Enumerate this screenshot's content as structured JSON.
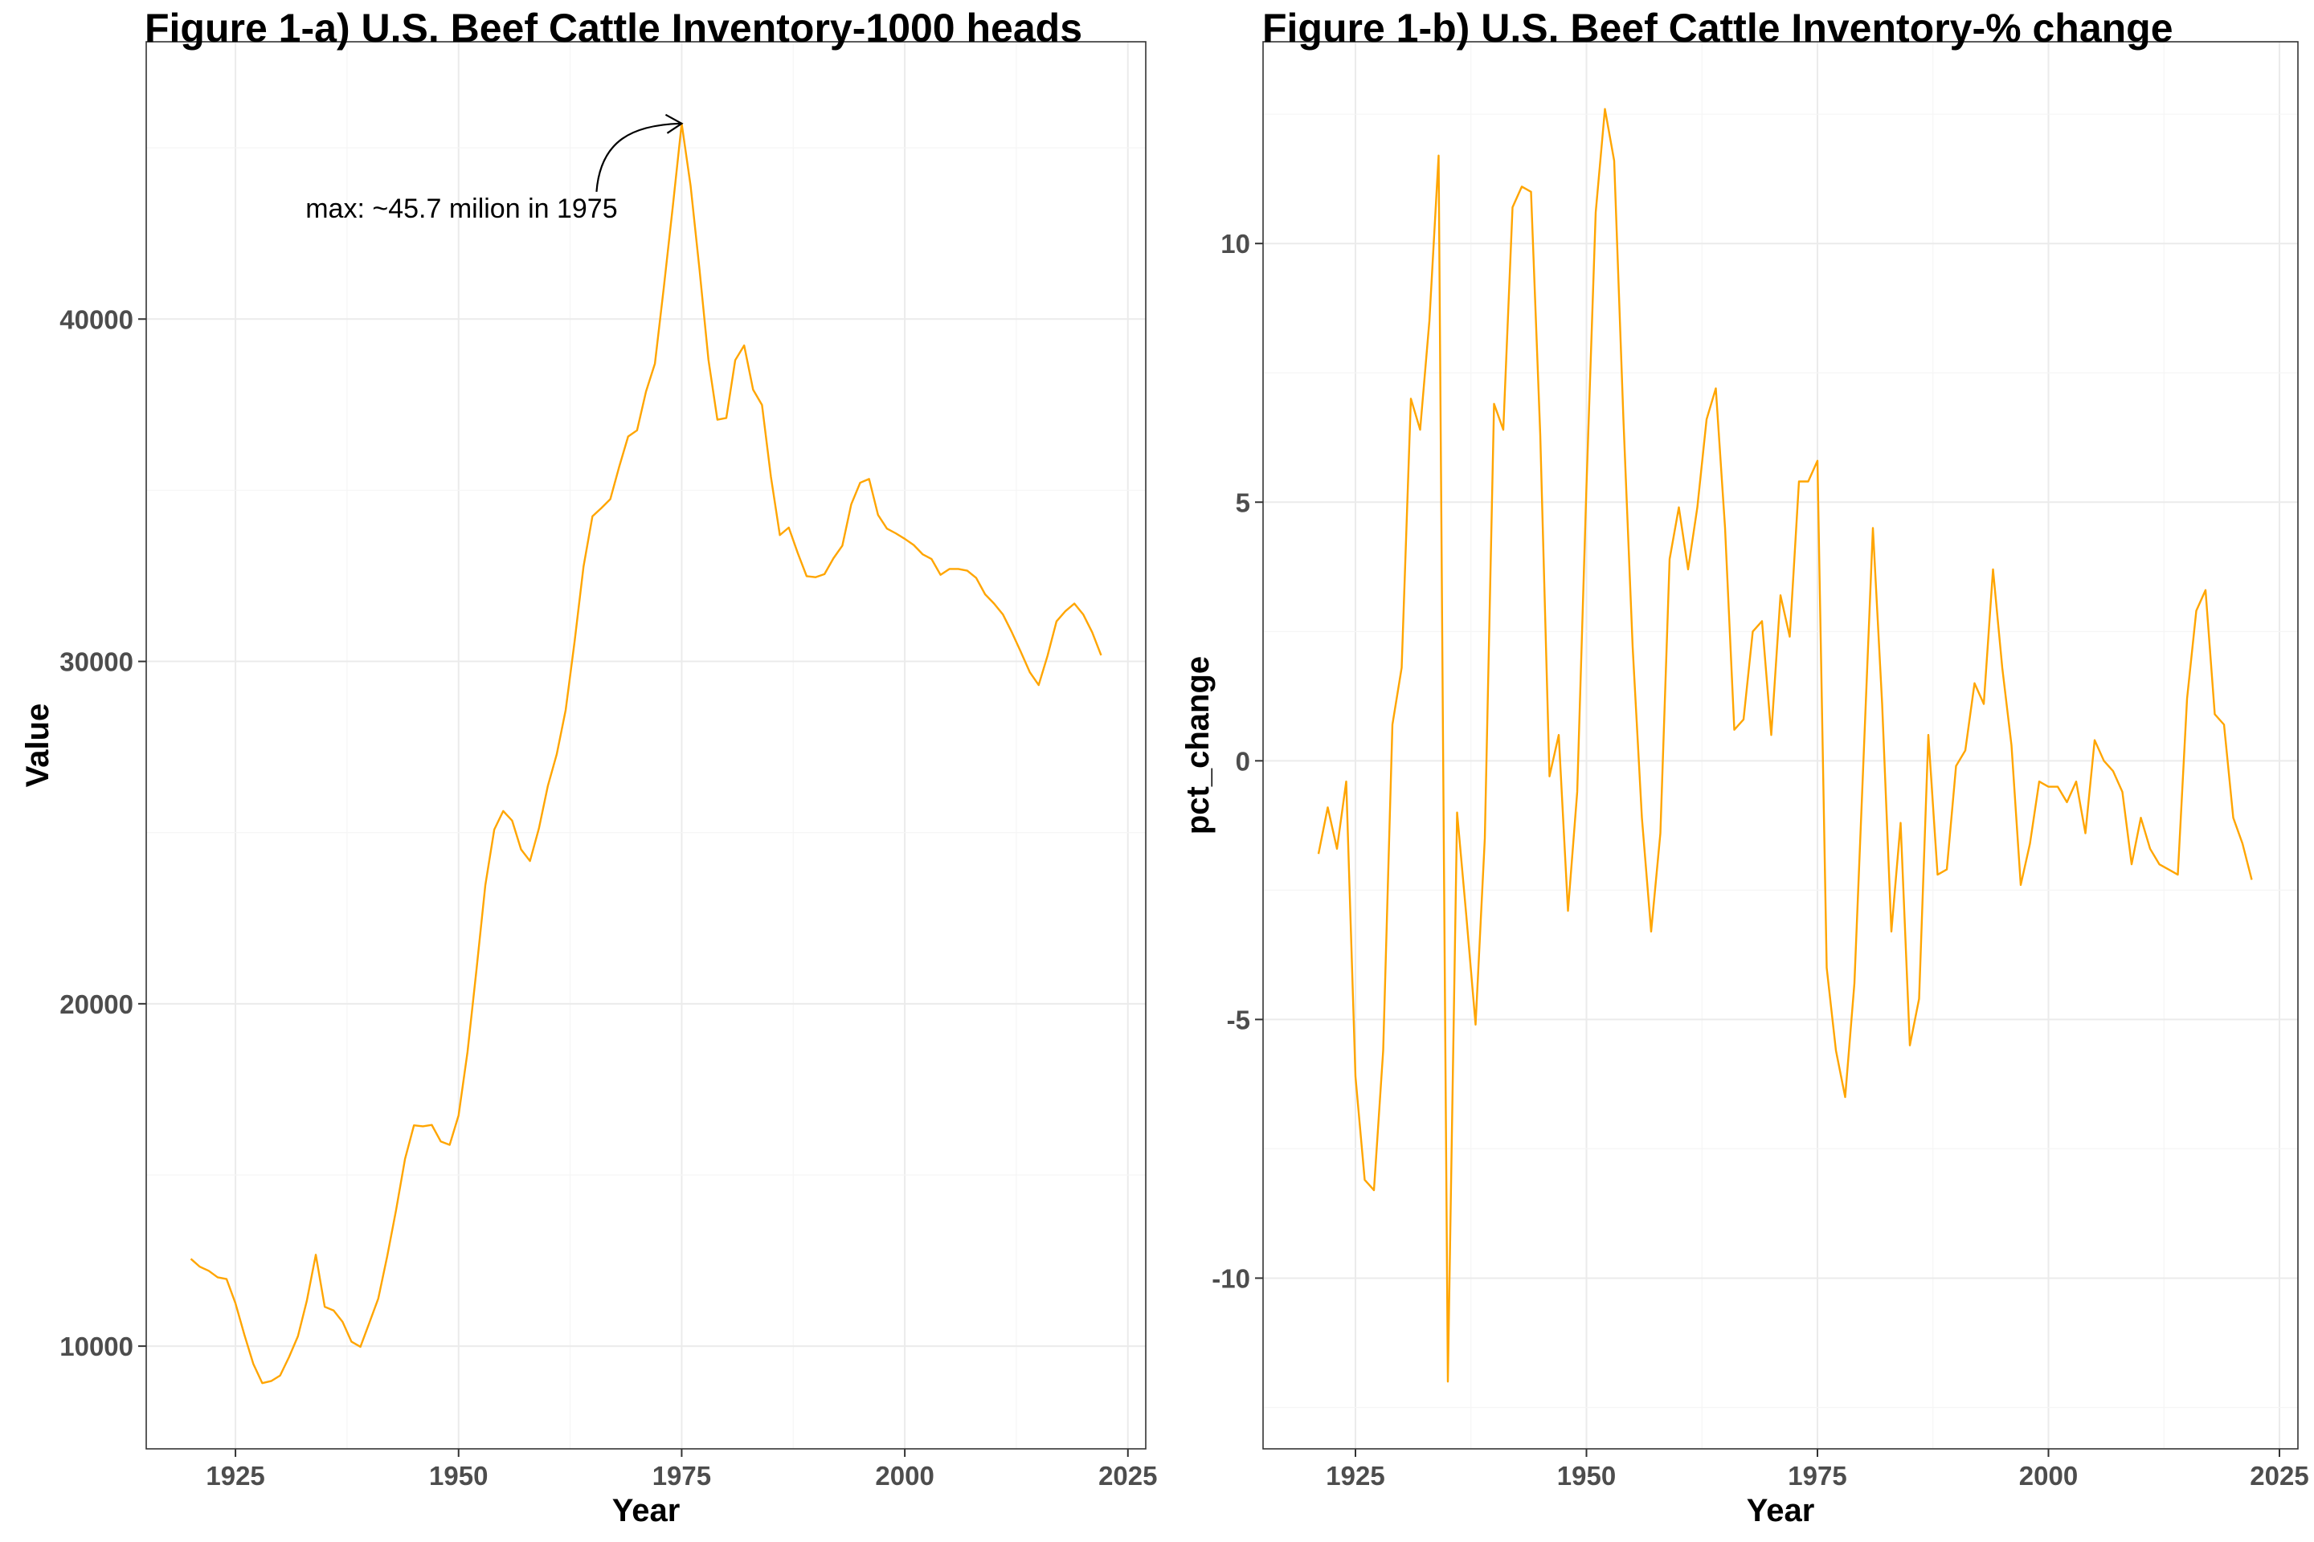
{
  "chart_data": [
    {
      "type": "line",
      "title": "Figure 1-a) U.S. Beef Cattle Inventory-1000 heads",
      "xlabel": "Year",
      "ylabel": "Value",
      "xlim": [
        1915,
        2027
      ],
      "ylim": [
        7000,
        48100
      ],
      "x_ticks": [
        1925,
        1950,
        1975,
        2000,
        2025
      ],
      "y_ticks": [
        10000,
        20000,
        30000,
        40000
      ],
      "grid": true,
      "color": "#FFA500",
      "annotation": {
        "text": "max: ~45.7 milion in 1975",
        "x": 1975,
        "y": 45712
      },
      "series": [
        {
          "x": [
            1920,
            1921,
            1922,
            1923,
            1924,
            1925,
            1926,
            1927,
            1928,
            1929,
            1930,
            1931,
            1932,
            1933,
            1934,
            1935,
            1936,
            1937,
            1938,
            1939,
            1940,
            1941,
            1942,
            1943,
            1944,
            1945,
            1946,
            1947,
            1948,
            1949,
            1950,
            1951,
            1952,
            1953,
            1954,
            1955,
            1956,
            1957,
            1958,
            1959,
            1960,
            1961,
            1962,
            1963,
            1964,
            1965,
            1966,
            1967,
            1968,
            1969,
            1970,
            1971,
            1972,
            1973,
            1974,
            1975,
            1976,
            1977,
            1978,
            1979,
            1980,
            1981,
            1982,
            1983,
            1984,
            1985,
            1986,
            1987,
            1988,
            1989,
            1990,
            1991,
            1992,
            1993,
            1994,
            1995,
            1996,
            1997,
            1998,
            1999,
            2000,
            2001,
            2002,
            2003,
            2004,
            2005,
            2006,
            2007,
            2008,
            2009,
            2010,
            2011,
            2012,
            2013,
            2014,
            2015,
            2016,
            2017,
            2018,
            2019,
            2020,
            2021,
            2022
          ],
          "values": [
            12550,
            12320,
            12200,
            12010,
            11960,
            11250,
            10330,
            9480,
            8920,
            8980,
            9140,
            9680,
            10290,
            11330,
            12670,
            11150,
            11040,
            10710,
            10130,
            9980,
            10680,
            11390,
            12620,
            13980,
            15470,
            16450,
            16420,
            16460,
            15980,
            15880,
            16740,
            18590,
            20980,
            23470,
            25090,
            25630,
            25350,
            24510,
            24170,
            25120,
            26360,
            27290,
            28580,
            30580,
            32770,
            34240,
            34480,
            34740,
            35690,
            36570,
            36750,
            37880,
            38700,
            40930,
            43280,
            45710,
            43890,
            41440,
            38810,
            37060,
            37110,
            38800,
            39230,
            37940,
            37490,
            35390,
            33690,
            33910,
            33170,
            32490,
            32460,
            32550,
            33010,
            33380,
            34590,
            35220,
            35330,
            34280,
            33880,
            33740,
            33580,
            33400,
            33130,
            32990,
            32530,
            32700,
            32700,
            32650,
            32440,
            31960,
            31690,
            31370,
            30850,
            30280,
            29690,
            29310,
            30170,
            31170,
            31470,
            31690,
            31370,
            30850,
            30180
          ]
        }
      ]
    },
    {
      "type": "line",
      "title": "Figure 1-b) U.S. Beef Cattle Inventory-% change",
      "xlabel": "Year",
      "ylabel": "pct_change",
      "xlim": [
        1915,
        2027
      ],
      "ylim": [
        -13.3,
        13.9
      ],
      "x_ticks": [
        1925,
        1950,
        1975,
        2000,
        2025
      ],
      "y_ticks": [
        -10,
        -5,
        0,
        5,
        10
      ],
      "grid": true,
      "color": "#FFA500",
      "series": [
        {
          "x": [
            1921,
            1922,
            1923,
            1924,
            1925,
            1926,
            1927,
            1928,
            1929,
            1930,
            1931,
            1932,
            1933,
            1934,
            1935,
            1936,
            1937,
            1938,
            1939,
            1940,
            1941,
            1942,
            1943,
            1944,
            1945,
            1946,
            1947,
            1948,
            1949,
            1950,
            1951,
            1952,
            1953,
            1954,
            1955,
            1956,
            1957,
            1958,
            1959,
            1960,
            1961,
            1962,
            1963,
            1964,
            1965,
            1966,
            1967,
            1968,
            1969,
            1970,
            1971,
            1972,
            1973,
            1974,
            1975,
            1976,
            1977,
            1978,
            1979,
            1980,
            1981,
            1982,
            1983,
            1984,
            1985,
            1986,
            1987,
            1988,
            1989,
            1990,
            1991,
            1992,
            1993,
            1994,
            1995,
            1996,
            1997,
            1998,
            1999,
            2000,
            2001,
            2002,
            2003,
            2004,
            2005,
            2006,
            2007,
            2008,
            2009,
            2010,
            2011,
            2012,
            2013,
            2014,
            2015,
            2016,
            2017,
            2018,
            2019,
            2020,
            2021,
            2022
          ],
          "values": [
            -1.8,
            -0.9,
            -1.7,
            -0.4,
            -6.1,
            -8.1,
            -8.3,
            -5.6,
            0.7,
            1.8,
            7.0,
            6.4,
            8.5,
            11.7,
            -12.0,
            -1.0,
            -3.0,
            -5.1,
            -1.5,
            6.9,
            6.4,
            10.7,
            11.1,
            11.0,
            6.3,
            -0.3,
            0.5,
            -2.9,
            -0.6,
            5.3,
            10.6,
            12.6,
            11.6,
            6.6,
            2.2,
            -1.1,
            -3.3,
            -1.4,
            3.9,
            4.9,
            3.7,
            4.9,
            6.6,
            7.2,
            4.5,
            0.6,
            0.8,
            2.5,
            2.7,
            0.5,
            3.2,
            2.4,
            5.4,
            5.4,
            5.8,
            -4.0,
            -5.6,
            -6.5,
            -4.3,
            0.1,
            4.5,
            1.1,
            -3.3,
            -1.2,
            -5.5,
            -4.6,
            0.5,
            -2.2,
            -2.1,
            -0.1,
            0.2,
            1.5,
            1.1,
            3.7,
            1.8,
            0.3,
            -2.4,
            -1.6,
            -0.4,
            -0.5,
            -0.5,
            -0.8,
            -0.4,
            -1.4,
            0.4,
            0.0,
            -0.2,
            -0.6,
            -2.0,
            -1.1,
            -1.7,
            -2.0,
            -2.1,
            -2.2,
            1.2,
            2.9,
            3.3,
            0.9,
            0.7,
            -1.1,
            -1.6,
            -2.3
          ]
        }
      ]
    }
  ]
}
